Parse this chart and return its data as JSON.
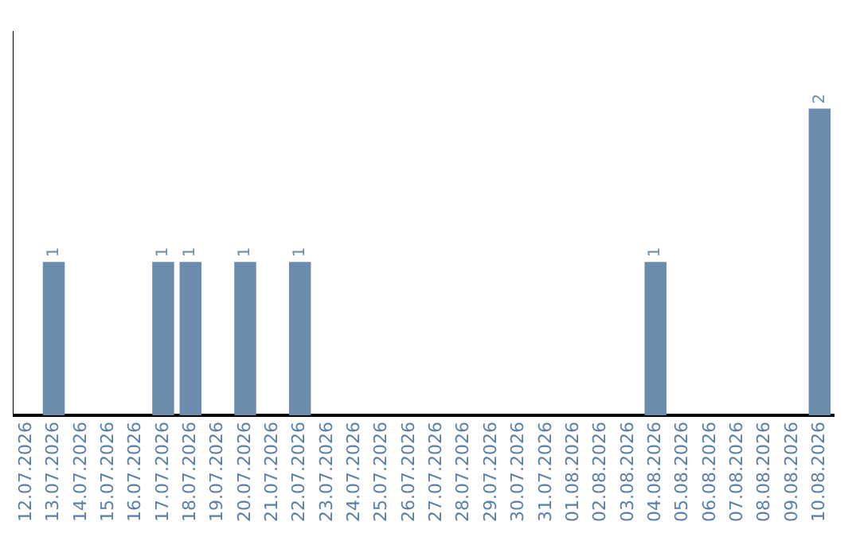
{
  "chart_data": {
    "type": "bar",
    "categories": [
      "12.07.2026",
      "13.07.2026",
      "14.07.2026",
      "15.07.2026",
      "16.07.2026",
      "17.07.2026",
      "18.07.2026",
      "19.07.2026",
      "20.07.2026",
      "21.07.2026",
      "22.07.2026",
      "23.07.2026",
      "24.07.2026",
      "25.07.2026",
      "26.07.2026",
      "27.07.2026",
      "28.07.2026",
      "29.07.2026",
      "30.07.2026",
      "31.07.2026",
      "01.08.2026",
      "02.08.2026",
      "03.08.2026",
      "04.08.2026",
      "05.08.2026",
      "06.08.2026",
      "07.08.2026",
      "08.08.2026",
      "09.08.2026",
      "10.08.2026"
    ],
    "values": [
      0,
      1,
      0,
      0,
      0,
      1,
      1,
      0,
      1,
      0,
      1,
      0,
      0,
      0,
      0,
      0,
      0,
      0,
      0,
      0,
      0,
      0,
      0,
      1,
      0,
      0,
      0,
      0,
      0,
      2
    ],
    "value_labels": [
      null,
      "1",
      null,
      null,
      null,
      "1",
      "1",
      null,
      "1",
      null,
      "1",
      null,
      null,
      null,
      null,
      null,
      null,
      null,
      null,
      null,
      null,
      null,
      null,
      "1",
      null,
      null,
      null,
      null,
      null,
      "2"
    ],
    "color": "#6b8cad",
    "grid": false,
    "legend": false
  }
}
